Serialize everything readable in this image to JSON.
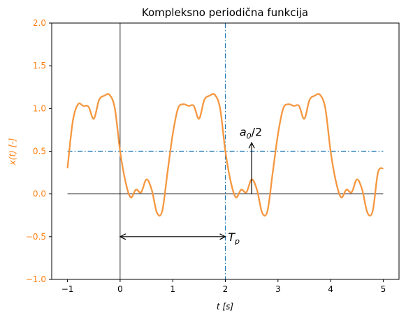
{
  "chart_data": {
    "type": "line",
    "title": "Kompleksno periodična funkcija",
    "xlabel": "t   [s]",
    "ylabel": "x(t)   [-]",
    "xlim": [
      -1.3,
      5.3
    ],
    "ylim": [
      -1.0,
      2.0
    ],
    "xticks": [
      -1,
      0,
      1,
      2,
      3,
      4,
      5
    ],
    "yticks": [
      -1.0,
      -0.5,
      0.0,
      0.5,
      1.0,
      1.5,
      2.0
    ],
    "xtick_labels": [
      "−1",
      "0",
      "1",
      "2",
      "3",
      "4",
      "5"
    ],
    "ytick_labels": [
      "−1.0",
      "−0.5",
      "0.0",
      "0.5",
      "1.0",
      "1.5",
      "2.0"
    ],
    "grid": false,
    "colors": {
      "signal": "#f59740",
      "ylabel": "#ff7f0e",
      "mean_line": "#1f77b4",
      "axis_lines": "#000000"
    },
    "series": [
      {
        "role": "signal",
        "x": [
          -1.0,
          -0.9,
          -0.8,
          -0.7,
          -0.6,
          -0.5,
          -0.4,
          -0.3,
          -0.2,
          -0.1,
          0.0,
          0.1,
          0.2,
          0.3,
          0.4,
          0.5,
          0.6,
          0.7,
          0.8,
          0.9,
          1.0,
          1.1,
          1.2,
          1.3,
          1.4,
          1.5,
          1.6,
          1.7,
          1.8,
          1.9,
          2.0,
          2.1,
          2.2,
          2.3,
          2.4,
          2.5,
          2.6,
          2.7,
          2.8,
          2.9,
          3.0,
          3.1,
          3.2,
          3.3,
          3.4,
          3.5,
          3.6,
          3.7,
          3.8,
          3.9,
          4.0,
          4.1,
          4.2,
          4.3,
          4.4,
          4.5,
          4.6,
          4.7,
          4.8,
          4.9,
          5.0
        ],
        "y": [
          0.3,
          0.85,
          1.05,
          1.03,
          1.02,
          0.88,
          1.1,
          1.15,
          1.16,
          1.0,
          0.5,
          0.15,
          -0.04,
          0.05,
          0.02,
          0.17,
          0.05,
          -0.22,
          -0.2,
          0.25,
          0.7,
          1.0,
          1.05,
          1.03,
          1.03,
          0.88,
          1.1,
          1.15,
          1.16,
          1.0,
          0.5,
          0.15,
          -0.04,
          0.05,
          0.02,
          0.17,
          0.05,
          -0.22,
          -0.2,
          0.25,
          0.7,
          1.0,
          1.05,
          1.03,
          1.03,
          0.88,
          1.1,
          1.15,
          1.16,
          1.0,
          0.5,
          0.15,
          -0.04,
          0.05,
          0.02,
          0.17,
          0.05,
          -0.22,
          -0.2,
          0.25,
          0.3
        ]
      }
    ],
    "reference_lines": {
      "mean_level": {
        "y": 0.5,
        "x_from": -1,
        "x_to": 5,
        "style": "dash-dot"
      },
      "period_marker": {
        "x": 2,
        "style": "dash-dot"
      },
      "zero_line": {
        "y": 0,
        "x_from": -1,
        "x_to": 5
      },
      "y_axis_line": {
        "x": 0
      }
    },
    "annotations": [
      {
        "type": "double-arrow",
        "x_from": 0,
        "x_to": 2,
        "y": -0.5,
        "label": "T_p",
        "label_main": "T",
        "label_sub": "p",
        "label_x": 2.05,
        "label_y": -0.5
      },
      {
        "type": "arrow",
        "x": 2.5,
        "y_from": 0,
        "y_to": 0.6,
        "label": "a_0/2",
        "label_main": "a",
        "label_sub": "0",
        "label_tail": "/2",
        "label_x": 2.27,
        "label_y": 0.68
      }
    ]
  }
}
